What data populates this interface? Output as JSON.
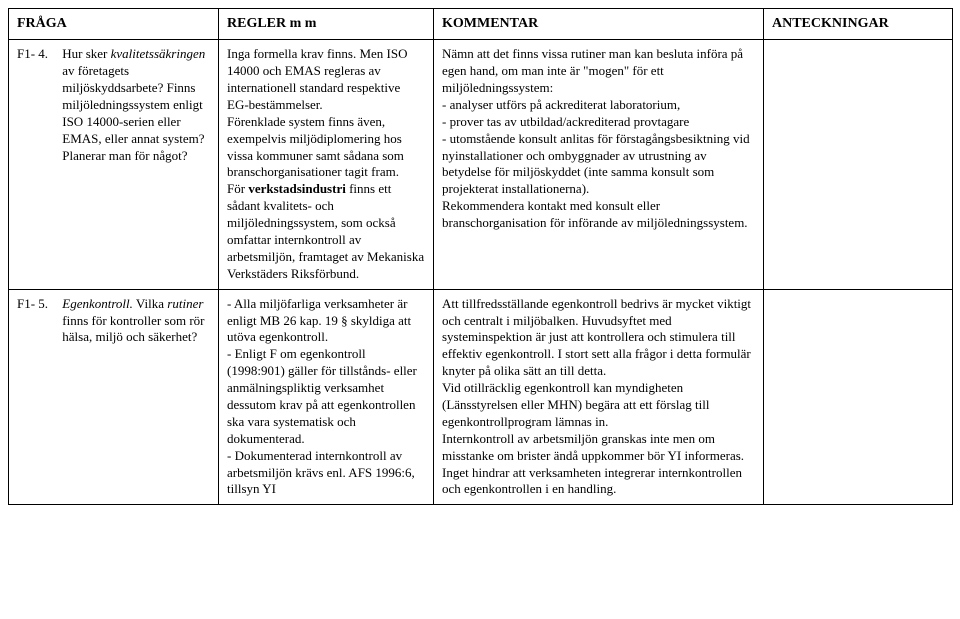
{
  "columns": {
    "fraga": "FRÅGA",
    "regler": "REGLER m m",
    "kommentar": "KOMMENTAR",
    "anteckningar": "ANTECKNINGAR"
  },
  "rows": [
    {
      "id": "F1- 4.",
      "fraga_pre": "Hur sker ",
      "fraga_italic": "kvalitetssäkringen",
      "fraga_post": " av företagets miljöskyddsarbete? Finns miljöledningssystem enligt ISO 14000-serien eller EMAS, eller annat system? Planerar man för något?",
      "regler_p1": "Inga formella krav finns. Men ISO 14000 och EMAS regleras av internationell standard respektive EG-bestämmelser.",
      "regler_p2": "Förenklade system finns även, exempelvis miljödiplomering hos vissa kommuner samt sådana som branschorganisationer tagit fram.",
      "regler_p3_pre": "För ",
      "regler_p3_bold": "verkstadsindustri",
      "regler_p3_post": " finns ett sådant kvalitets- och miljöledningssystem, som också omfattar internkontroll av arbetsmiljön, framtaget av Mekaniska Verkstäders Riksförbund.",
      "kommentar_p1": "Nämn att det finns vissa rutiner man kan besluta införa på egen hand, om man inte är \"mogen\" för ett miljöledningssystem:",
      "kommentar_b1": "- analyser utförs på ackrediterat laboratorium,",
      "kommentar_b2": "- prover tas av utbildad/ackrediterad provtagare",
      "kommentar_b3": "- utomstående konsult anlitas för förstagångsbesiktning vid nyinstallationer och ombyggnader av utrustning av betydelse för miljöskyddet (inte samma konsult som projekterat installationerna).",
      "kommentar_p2": "Rekommendera kontakt med konsult eller branschorganisation för införande av miljöledningssystem."
    },
    {
      "id": "F1- 5.",
      "fraga_italic1": "Egenkontroll.",
      "fraga_mid": " Vilka ",
      "fraga_italic2": "rutiner",
      "fraga_post": " finns för kontroller som rör hälsa, miljö och säkerhet?",
      "regler_b1": "- Alla miljöfarliga verksamheter är enligt MB 26 kap. 19 § skyldiga att utöva egenkontroll.",
      "regler_b2": "- Enligt F om egenkontroll (1998:901) gäller för tillstånds- eller anmälningspliktig verksamhet dessutom krav på att egenkontrollen ska vara systematisk och dokumenterad.",
      "regler_b3": "- Dokumenterad internkontroll av arbetsmiljön krävs enl. AFS 1996:6, tillsyn YI",
      "kommentar_p1": "Att tillfredsställande egenkontroll bedrivs är mycket viktigt och centralt i miljöbalken. Huvudsyftet med systeminspektion är just att kontrollera och stimulera till effektiv egenkontroll. I stort sett alla frågor i detta formulär knyter på olika sätt an till detta.",
      "kommentar_p2": "Vid otillräcklig egenkontroll kan myndigheten (Länsstyrelsen eller MHN) begära att ett förslag till egenkontrollprogram lämnas in.",
      "kommentar_p3": "Internkontroll av arbetsmiljön granskas inte men om misstanke om brister ändå uppkommer bör YI informeras.",
      "kommentar_p4": "Inget hindrar att verksamheten integrerar internkontrollen och egenkontrollen i en handling."
    }
  ]
}
